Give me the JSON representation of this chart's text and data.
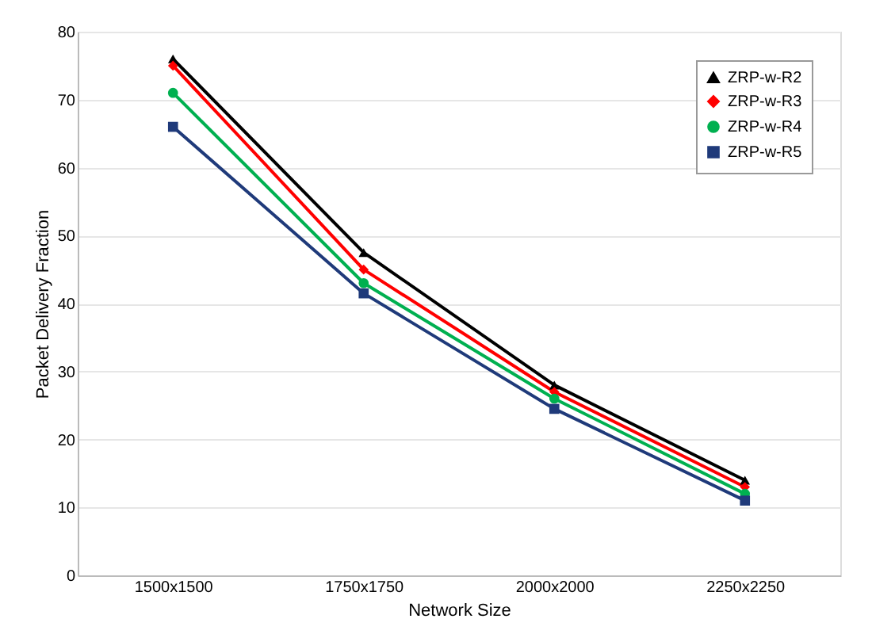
{
  "chart_data": {
    "type": "line",
    "xlabel": "Network Size",
    "ylabel": "Packet Delivery Fraction",
    "categories": [
      "1500x1500",
      "1750x1750",
      "2000x2000",
      "2250x2250"
    ],
    "series": [
      {
        "name": "ZRP-w-R2",
        "color": "#000000",
        "marker": "triangle",
        "values": [
          76,
          47.5,
          28,
          14
        ]
      },
      {
        "name": "ZRP-w-R3",
        "color": "#ff0000",
        "marker": "diamond",
        "values": [
          75,
          45,
          27,
          13
        ]
      },
      {
        "name": "ZRP-w-R4",
        "color": "#00b050",
        "marker": "circle",
        "values": [
          71,
          43,
          26,
          12
        ]
      },
      {
        "name": "ZRP-w-R5",
        "color": "#1f3a7a",
        "marker": "square",
        "values": [
          66,
          41.5,
          24.5,
          11
        ]
      }
    ],
    "ylim": [
      0,
      80
    ],
    "yticks": [
      0,
      10,
      20,
      30,
      40,
      50,
      60,
      70,
      80
    ],
    "grid": "y",
    "legend": "top right"
  }
}
